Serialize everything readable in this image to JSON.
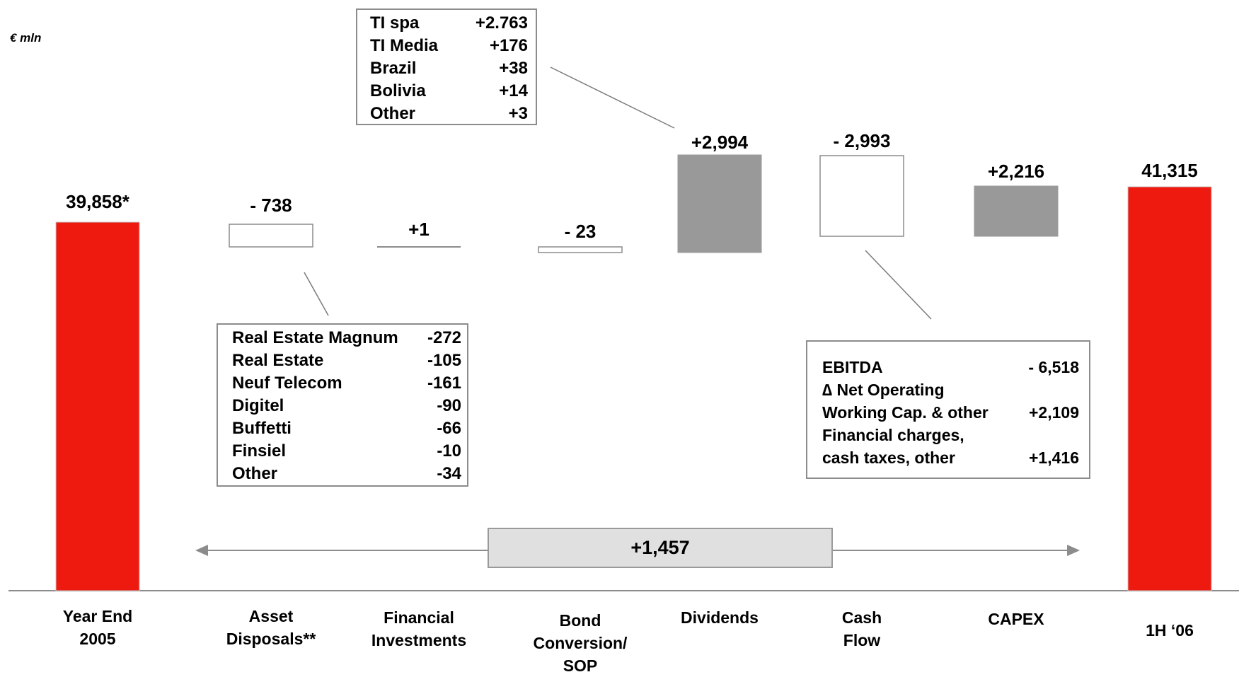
{
  "unit_label": "€ mln",
  "colors": {
    "endpoint": "#ee1a0f",
    "increase": "#999999",
    "decrease": "#ffffff",
    "outline": "#8c8c8c"
  },
  "chart_data": {
    "type": "bar",
    "subtype": "waterfall",
    "categories": [
      "Year End 2005",
      "Asset Disposals**",
      "Financial Investments",
      "Bond Conversion/ SOP",
      "Dividends",
      "Cash Flow",
      "CAPEX",
      "1H ‘06"
    ],
    "category_label_lines": [
      [
        "Year End",
        "2005"
      ],
      [
        "Asset",
        "Disposals**"
      ],
      [
        "Financial",
        "Investments"
      ],
      [
        "Bond",
        "Conversion/",
        "SOP"
      ],
      [
        "Dividends"
      ],
      [
        "Cash",
        "Flow"
      ],
      [
        "CAPEX"
      ],
      [
        "1H ‘06"
      ]
    ],
    "values": [
      39858,
      -738,
      1,
      -23,
      2994,
      -2993,
      2216,
      41315
    ],
    "value_labels": [
      "39,858*",
      "- 738",
      "+1",
      "- 23",
      "+2,994",
      "- 2,993",
      "+2,216",
      "41,315"
    ],
    "bar_kinds": [
      "total",
      "decrease",
      "change",
      "decrease",
      "increase",
      "decrease",
      "increase",
      "total"
    ],
    "net_change_label": "+1,457",
    "net_change_value": 1457
  },
  "breakdowns": {
    "dividends": [
      {
        "label": "TI spa",
        "value": "+2.763"
      },
      {
        "label": "TI Media",
        "value": "+176"
      },
      {
        "label": "Brazil",
        "value": "+38"
      },
      {
        "label": "Bolivia",
        "value": "+14"
      },
      {
        "label": "Other",
        "value": "+3"
      }
    ],
    "asset_disposals": [
      {
        "label": "Real Estate  Magnum",
        "value": "-272"
      },
      {
        "label": "Real Estate",
        "value": "-105"
      },
      {
        "label": "Neuf Telecom",
        "value": "-161"
      },
      {
        "label": "Digitel",
        "value": "-90"
      },
      {
        "label": "Buffetti",
        "value": "-66"
      },
      {
        "label": "Finsiel",
        "value": "-10"
      },
      {
        "label": "Other",
        "value": "-34"
      }
    ],
    "cash_flow": [
      {
        "label": "EBITDA",
        "value": "- 6,518"
      },
      {
        "label": "∆ Net Operating",
        "value": ""
      },
      {
        "label": "Working Cap. & other",
        "value": "+2,109"
      },
      {
        "label": "Financial charges,",
        "value": ""
      },
      {
        "label": "cash taxes, other",
        "value": "+1,416"
      }
    ]
  }
}
